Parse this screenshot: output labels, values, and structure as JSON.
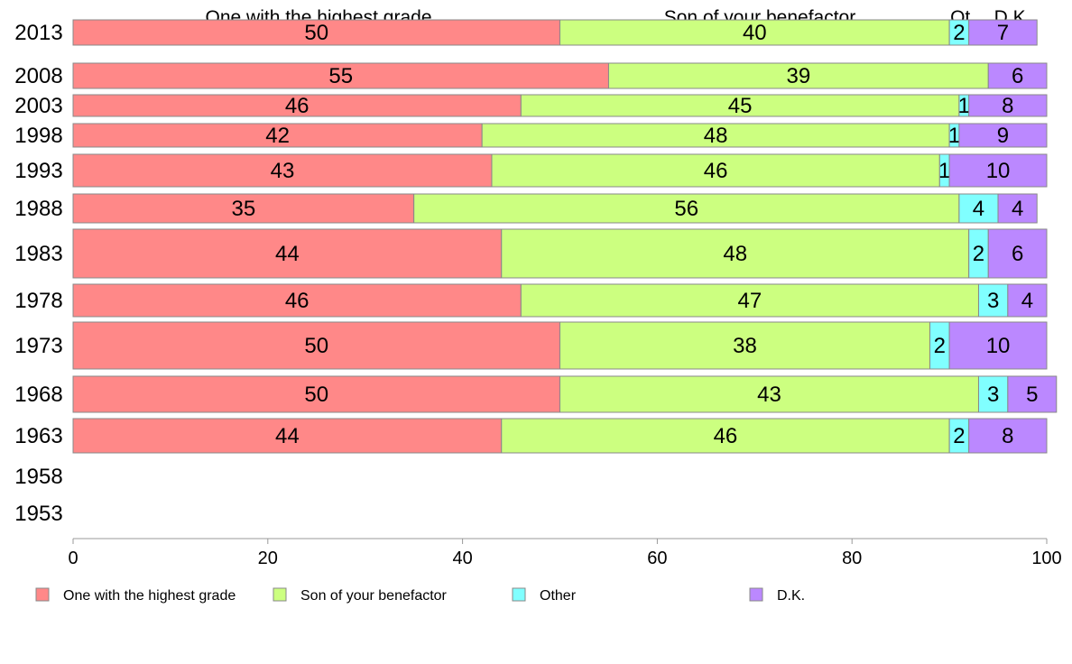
{
  "chart_data": {
    "type": "bar",
    "orientation": "horizontal",
    "stacked": true,
    "categories": [
      "2013",
      "2008",
      "2003",
      "1998",
      "1993",
      "1988",
      "1983",
      "1978",
      "1973",
      "1968",
      "1963",
      "1958",
      "1953"
    ],
    "series": [
      {
        "name": "One with the highest grade",
        "color": "#ff8888",
        "values": [
          50,
          55,
          46,
          42,
          43,
          35,
          44,
          46,
          50,
          50,
          44,
          null,
          null
        ]
      },
      {
        "name": "Son of your benefactor",
        "color": "#ccff80",
        "values": [
          40,
          39,
          45,
          48,
          46,
          56,
          48,
          47,
          38,
          43,
          46,
          null,
          null
        ]
      },
      {
        "name": "Other",
        "color": "#80ffff",
        "values": [
          2,
          0,
          1,
          1,
          1,
          4,
          2,
          3,
          2,
          3,
          2,
          null,
          null
        ]
      },
      {
        "name": "D.K.",
        "color": "#bb88ff",
        "values": [
          7,
          6,
          8,
          9,
          10,
          4,
          6,
          4,
          10,
          5,
          8,
          null,
          null
        ]
      }
    ],
    "header_labels": [
      "One with the highest grade",
      "Son of your benefactor",
      "Ot..",
      "D.K."
    ],
    "xlim": [
      0,
      100
    ],
    "xticks": [
      0,
      20,
      40,
      60,
      80,
      100
    ],
    "legend_position": "bottom",
    "grid": false
  }
}
